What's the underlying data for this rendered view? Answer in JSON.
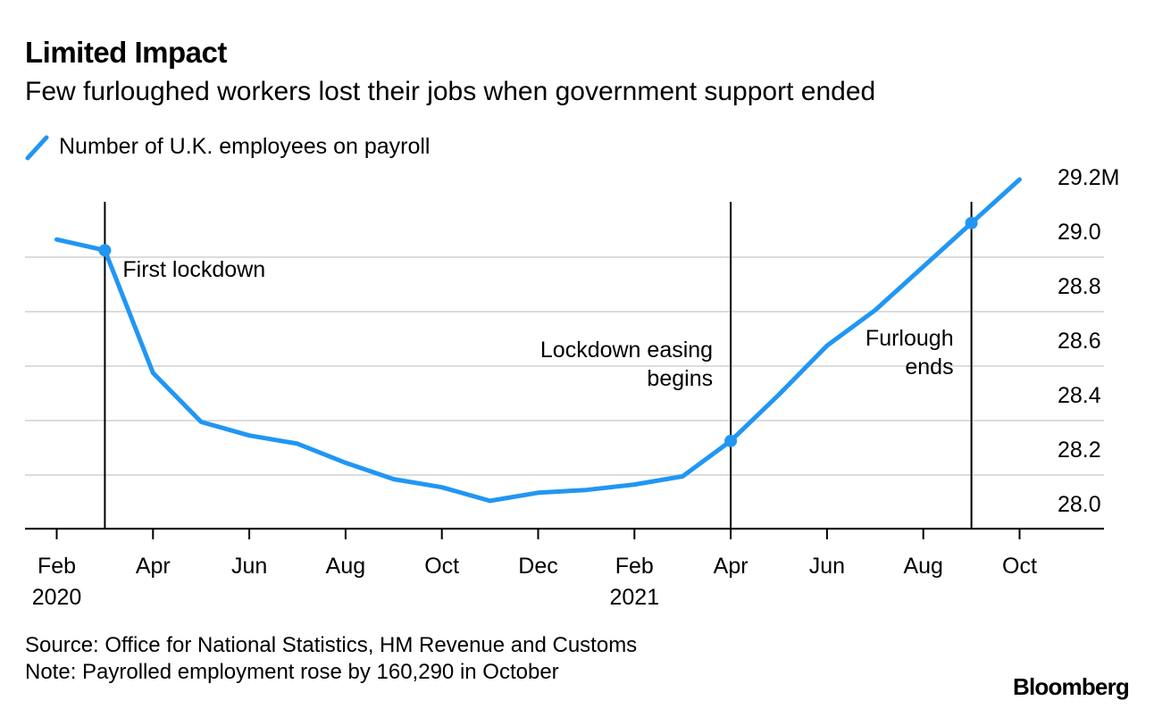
{
  "header": {
    "title": "Limited Impact",
    "subtitle": "Few furloughed workers lost their jobs when government support ended",
    "legend_label": "Number of U.K. employees on payroll"
  },
  "footer": {
    "source": "Source: Office for National Statistics, HM Revenue and Customs",
    "note": "Note: Payrolled employment rose by 160,290 in October",
    "brand": "Bloomberg"
  },
  "colors": {
    "series": "#2196f3",
    "grid": "#dcdcdc",
    "axis": "#000000",
    "text": "#000000"
  },
  "chart_data": {
    "type": "line",
    "series": [
      {
        "name": "Number of U.K. employees on payroll",
        "x": [
          "2020-02",
          "2020-03",
          "2020-04",
          "2020-05",
          "2020-06",
          "2020-07",
          "2020-08",
          "2020-09",
          "2020-10",
          "2020-11",
          "2020-12",
          "2021-01",
          "2021-02",
          "2021-03",
          "2021-04",
          "2021-05",
          "2021-06",
          "2021-07",
          "2021-08",
          "2021-09",
          "2021-10"
        ],
        "values": [
          28.97,
          28.93,
          28.48,
          28.3,
          28.25,
          28.22,
          28.15,
          28.09,
          28.06,
          28.01,
          28.04,
          28.05,
          28.07,
          28.1,
          28.23,
          28.4,
          28.58,
          28.71,
          28.87,
          29.03,
          29.19
        ]
      }
    ],
    "highlight_points": [
      "2020-03",
      "2021-04",
      "2021-09"
    ],
    "ylim": [
      27.9,
      29.2
    ],
    "yticks": [
      28.0,
      28.2,
      28.4,
      28.6,
      28.8,
      29.0,
      29.2
    ],
    "ytick_labels": [
      "28.0",
      "28.2",
      "28.4",
      "28.6",
      "28.8",
      "29.0",
      "29.2M"
    ],
    "xticks": [
      "2020-02",
      "2020-04",
      "2020-06",
      "2020-08",
      "2020-10",
      "2020-12",
      "2021-02",
      "2021-04",
      "2021-06",
      "2021-08",
      "2021-10"
    ],
    "xtick_labels": [
      "Feb",
      "Apr",
      "Jun",
      "Aug",
      "Oct",
      "Dec",
      "Feb",
      "Apr",
      "Jun",
      "Aug",
      "Oct"
    ],
    "year_labels": [
      {
        "x": "2020-02",
        "label": "2020"
      },
      {
        "x": "2021-02",
        "label": "2021"
      }
    ],
    "annotations": [
      {
        "x": "2020-03",
        "lines": [
          "First lockdown"
        ],
        "side": "right"
      },
      {
        "x": "2021-04",
        "lines": [
          "Lockdown easing",
          "begins"
        ],
        "side": "left"
      },
      {
        "x": "2021-09",
        "lines": [
          "Furlough",
          "ends"
        ],
        "side": "left"
      }
    ],
    "xlabel": "",
    "ylabel": "",
    "grid": true,
    "y_axis_position": "right",
    "legend_position": "top-left"
  }
}
